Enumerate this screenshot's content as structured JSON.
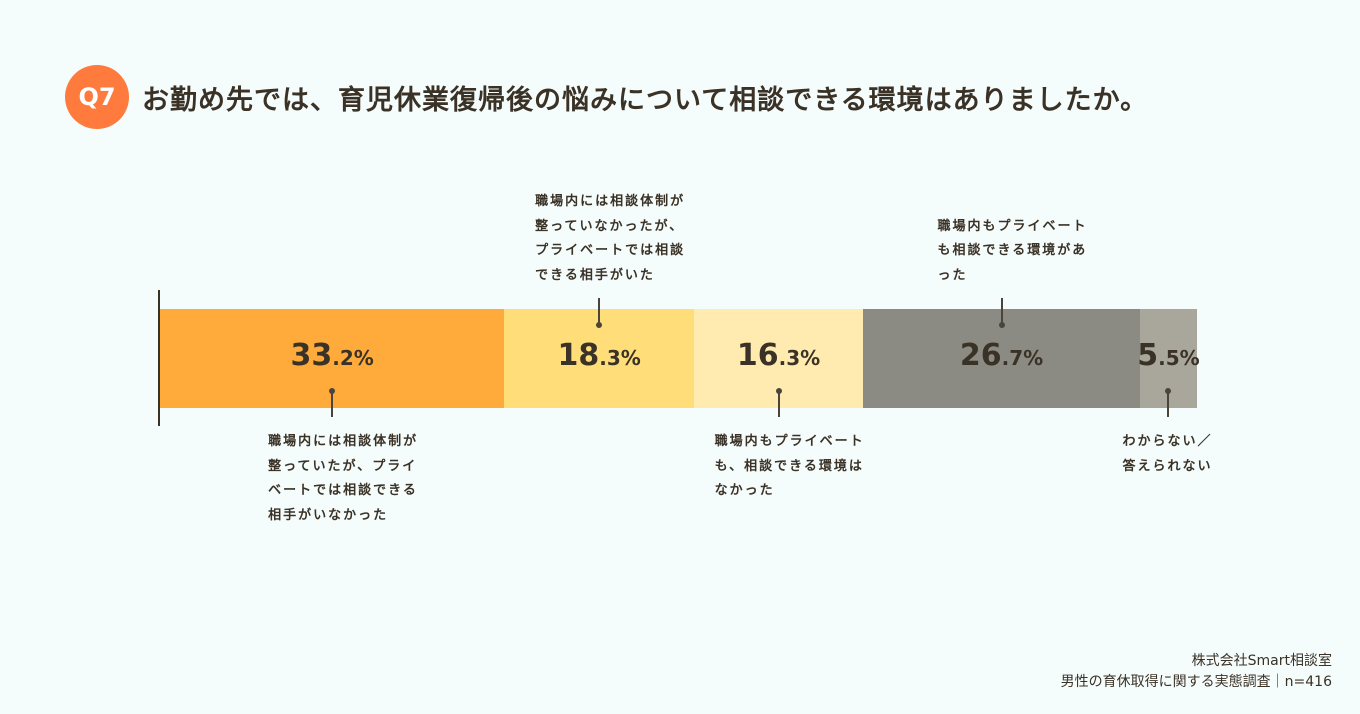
{
  "chart_data": {
    "type": "bar",
    "badge": "Q7",
    "title": "お勤め先では、育児休業復帰後の悩みについて相談できる環境はありましたか。",
    "xlim": [
      0,
      100
    ],
    "series": [
      {
        "name": "職場内には相談体制が整っていたが、プライベートでは相談できる相手がいなかった",
        "color": "#ffab3b",
        "values": [
          33.2
        ],
        "value_labels": [
          "33.2%"
        ]
      },
      {
        "name": "職場内には相談体制が整っていなかったが、プライベートでは相談できる相手がいた",
        "color": "#ffde7a",
        "values": [
          18.3
        ],
        "value_labels": [
          "18.3%"
        ]
      },
      {
        "name": "職場内もプライベートも、相談できる環境はなかった",
        "color": "#ffebb0",
        "values": [
          16.3
        ],
        "value_labels": [
          "16.3%"
        ]
      },
      {
        "name": "職場内もプライベートも相談できる環境があった",
        "color": "#8c8b83",
        "values": [
          26.7
        ],
        "value_labels": [
          "26.7%"
        ]
      },
      {
        "name": "わからない／答えられない",
        "color": "#a9a79b",
        "values": [
          5.5
        ],
        "value_labels": [
          "5.5%"
        ]
      }
    ],
    "source": [
      "株式会社Smart相談室",
      "男性の育休取得に関する実態調査｜n=416"
    ]
  }
}
